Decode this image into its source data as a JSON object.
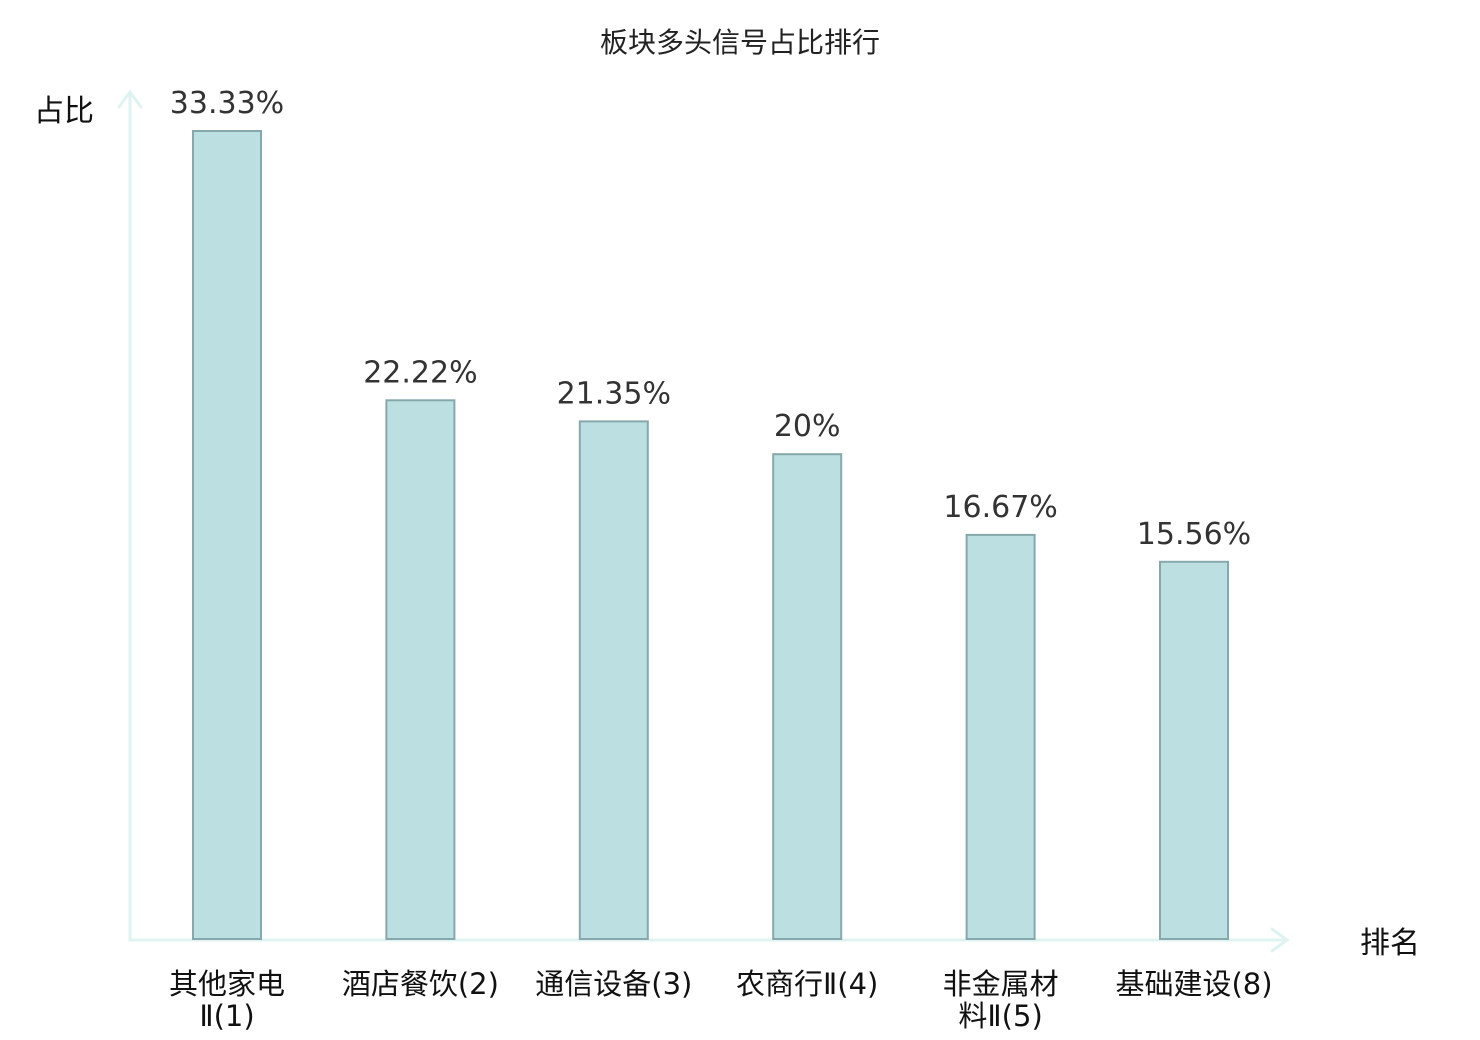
{
  "chart_data": {
    "type": "bar",
    "title": "板块多头信号占比排行",
    "ylabel": "占比",
    "xlabel": "排名",
    "categories": [
      {
        "lines": [
          "其他家电",
          "Ⅱ(1)"
        ],
        "highlight": false
      },
      {
        "lines": [
          "酒店餐饮(2)"
        ],
        "highlight": false
      },
      {
        "lines": [
          "通信设备(3)"
        ],
        "highlight": false
      },
      {
        "lines": [
          "农商行Ⅱ(4)"
        ],
        "highlight": false
      },
      {
        "lines": [
          "非金属材",
          "料Ⅱ(5)"
        ],
        "highlight": false
      },
      {
        "lines": [
          "基础建设(8)"
        ],
        "highlight": true
      }
    ],
    "values": [
      33.33,
      22.22,
      21.35,
      20,
      16.67,
      15.56
    ],
    "value_labels": [
      "33.33%",
      "22.22%",
      "21.35%",
      "20%",
      "16.67%",
      "15.56%"
    ],
    "ylim": [
      0,
      33.33
    ],
    "grid": false,
    "colors": {
      "bar_fill": "#bce0e2",
      "bar_stroke": "#87a8aa",
      "axis": "#dff3f0",
      "highlight_label": "#e0141e"
    }
  }
}
